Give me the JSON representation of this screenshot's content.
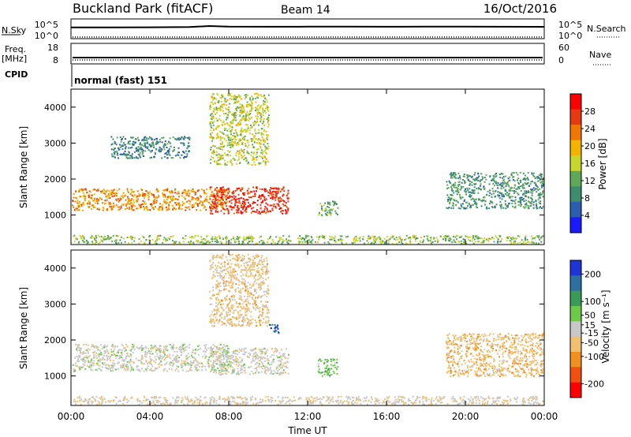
{
  "header": {
    "site": "Buckland Park (fitACF)",
    "beam": "Beam 14",
    "date": "16/Oct/2016"
  },
  "labels": {
    "nsky": "N.Sky",
    "nsearch": "N.Search",
    "freq": "Freq.",
    "freq_unit": "[MHz]",
    "nave": "Nave",
    "cpid": "CPID",
    "mode": "normal (fast) 151",
    "slant_range": "Slant Range [km]",
    "time_axis": "Time UT",
    "power_title": "Power [dB]",
    "velocity_title": "Velocity [m s⁻¹]"
  },
  "colors": {
    "power_scale": [
      "#1a1aff",
      "#2a5fb0",
      "#3d8c6e",
      "#5fa85a",
      "#c6d62e",
      "#f2b400",
      "#f07800",
      "#e53a10",
      "#ff0000"
    ],
    "velocity_scale": [
      "#1e34d8",
      "#2d6fa0",
      "#3a9a57",
      "#6cc94a",
      "#c8c8c8",
      "#f0c070",
      "#f09020",
      "#f05010",
      "#ff0000"
    ]
  },
  "chart_data": [
    {
      "type": "line",
      "panel": "noise",
      "left_ticks": [
        "10^5",
        "10^0"
      ],
      "right_ticks": [
        "10^5",
        "10^0"
      ],
      "series": [
        {
          "name": "N.Sky",
          "x": [
            "00:00",
            "02:00",
            "04:00",
            "06:00",
            "07:00",
            "08:00",
            "10:00",
            "12:00",
            "14:00",
            "16:00",
            "18:00",
            "20:00",
            "22:00",
            "24:00"
          ],
          "values": [
            1000,
            1000,
            1100,
            1300,
            2500,
            1800,
            1600,
            1700,
            1800,
            1600,
            1700,
            1700,
            1600,
            1500
          ]
        }
      ]
    },
    {
      "type": "line",
      "panel": "frequency",
      "left_ticks": [
        "18",
        "8"
      ],
      "right_ticks": [
        "60",
        "0"
      ],
      "series": [
        {
          "name": "Freq.",
          "x": [
            "00:00",
            "24:00"
          ],
          "values": [
            10.2,
            10.2
          ]
        }
      ]
    },
    {
      "type": "heatmap",
      "panel": "power",
      "x_ticks": [
        "00:00",
        "04:00",
        "08:00",
        "12:00",
        "16:00",
        "20:00",
        "00:00"
      ],
      "y_ticks": [
        1000,
        2000,
        3000,
        4000
      ],
      "ylim": [
        180,
        4500
      ],
      "xlim_hours": [
        0,
        24
      ],
      "colorbar_ticks": [
        4,
        8,
        12,
        16,
        20,
        24,
        28
      ],
      "colorbar_range": [
        0,
        32
      ],
      "bands": [
        {
          "time_start": 0,
          "time_end": 8,
          "range_bottom": 1150,
          "range_top": 1750,
          "power": 22
        },
        {
          "time_start": 7,
          "time_end": 11,
          "range_bottom": 1050,
          "range_top": 1800,
          "power": 28
        },
        {
          "time_start": 7,
          "time_end": 10,
          "range_bottom": 2400,
          "range_top": 4400,
          "power": 16
        },
        {
          "time_start": 2,
          "time_end": 6,
          "range_bottom": 2600,
          "range_top": 3200,
          "power": 8
        },
        {
          "time_start": 12.5,
          "time_end": 13.5,
          "range_bottom": 1000,
          "range_top": 1400,
          "power": 12
        },
        {
          "time_start": 19,
          "time_end": 24,
          "range_bottom": 1200,
          "range_top": 2200,
          "power": 10
        },
        {
          "time_start": 0,
          "time_end": 24,
          "range_bottom": 200,
          "range_top": 450,
          "power": 14
        }
      ]
    },
    {
      "type": "heatmap",
      "panel": "velocity",
      "x_ticks": [
        "00:00",
        "04:00",
        "08:00",
        "12:00",
        "16:00",
        "20:00",
        "00:00"
      ],
      "y_ticks": [
        1000,
        2000,
        3000,
        4000
      ],
      "ylim": [
        180,
        4500
      ],
      "xlim_hours": [
        0,
        24
      ],
      "colorbar_ticks": [
        200,
        100,
        50,
        15,
        -15,
        -50,
        -100,
        -200
      ],
      "colorbar_range": [
        -250,
        250
      ],
      "bands": [
        {
          "time_start": 0,
          "time_end": 8,
          "range_bottom": 1150,
          "range_top": 1900,
          "velocity": 0
        },
        {
          "time_start": 7,
          "time_end": 11,
          "range_bottom": 1050,
          "range_top": 1800,
          "velocity": 0
        },
        {
          "time_start": 7,
          "time_end": 10,
          "range_bottom": 2400,
          "range_top": 4400,
          "velocity": -50
        },
        {
          "time_start": 10,
          "time_end": 10.5,
          "range_bottom": 2200,
          "range_top": 2450,
          "velocity": 200
        },
        {
          "time_start": 12.5,
          "time_end": 13.5,
          "range_bottom": 1000,
          "range_top": 1500,
          "velocity": 60
        },
        {
          "time_start": 19,
          "time_end": 24,
          "range_bottom": 1000,
          "range_top": 2200,
          "velocity": -60
        },
        {
          "time_start": 0,
          "time_end": 24,
          "range_bottom": 200,
          "range_top": 450,
          "velocity": -20
        }
      ]
    }
  ]
}
